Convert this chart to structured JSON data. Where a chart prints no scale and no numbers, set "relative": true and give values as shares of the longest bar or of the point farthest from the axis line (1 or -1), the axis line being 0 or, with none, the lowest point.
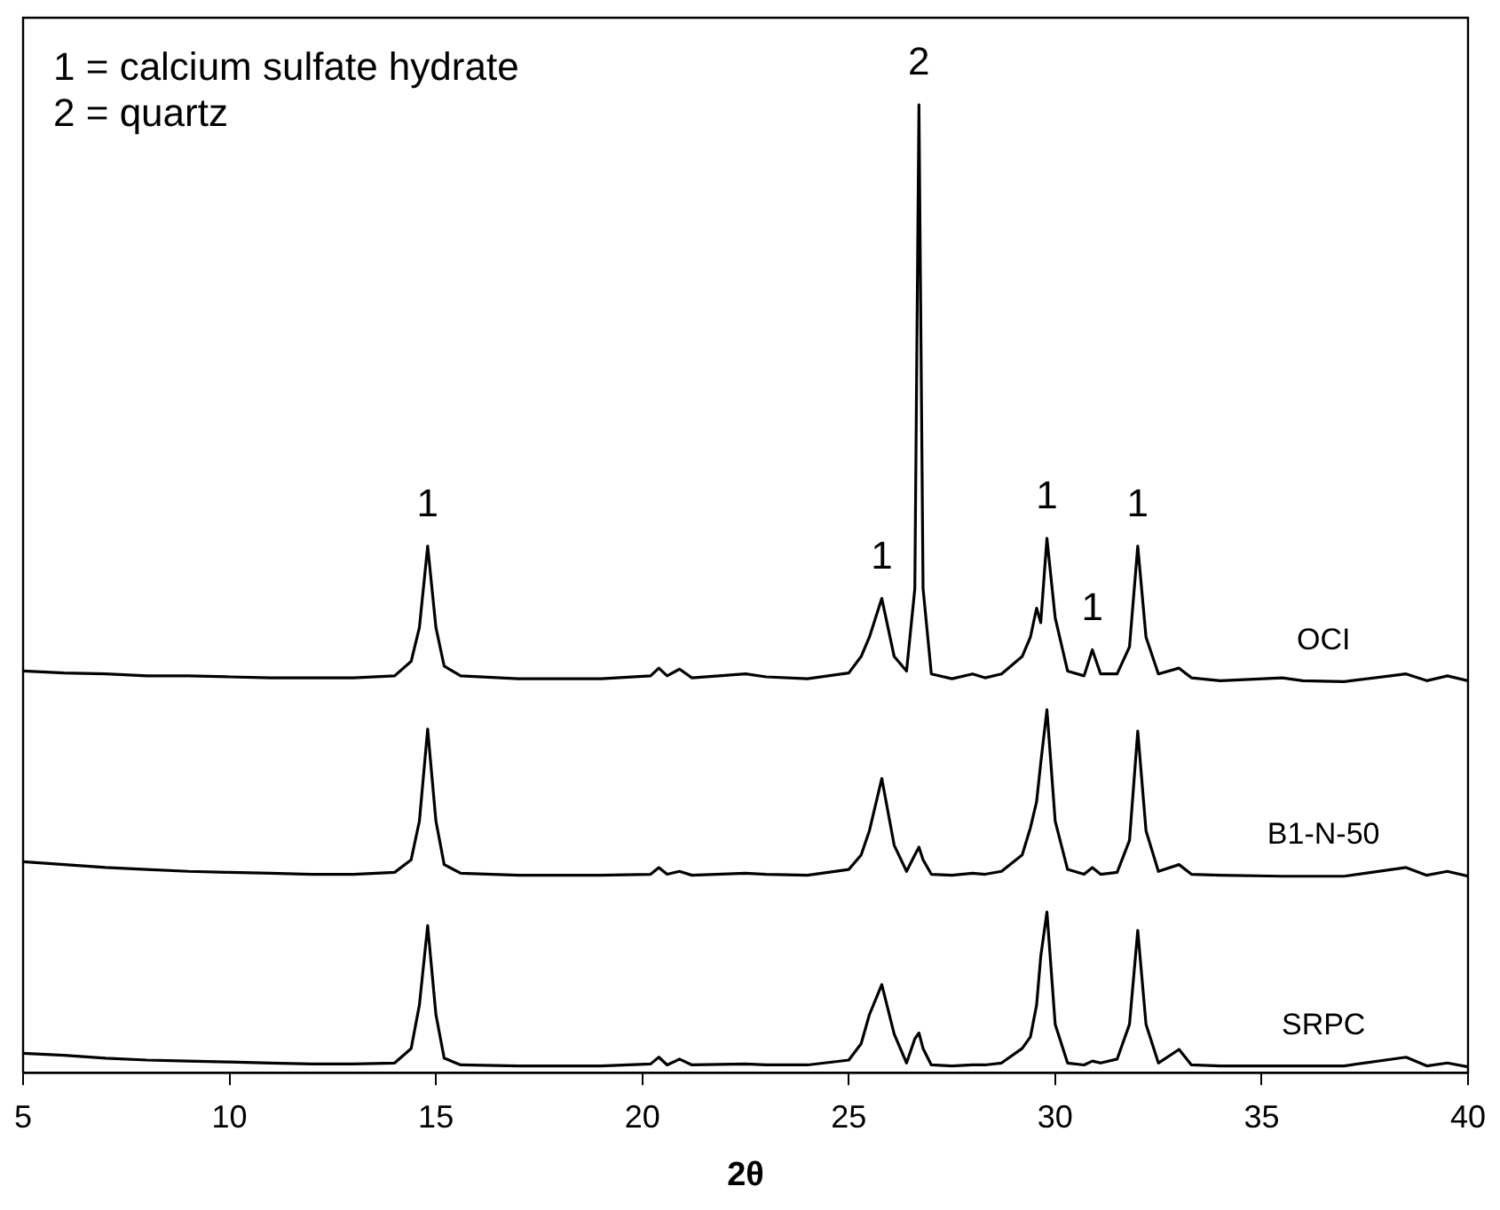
{
  "chart_data": {
    "type": "line",
    "xlabel": "2θ",
    "relative": true,
    "xlim": [
      5,
      40
    ],
    "xticks": [
      5,
      10,
      15,
      20,
      25,
      30,
      35,
      40
    ],
    "tick_labels": "x",
    "grid": false,
    "legend": false,
    "marker": "none",
    "line_style": "solid",
    "x": [
      5,
      6,
      7,
      8,
      9,
      10,
      11,
      12,
      13,
      14,
      14.4,
      14.6,
      14.8,
      15.0,
      15.2,
      15.6,
      17,
      19,
      20.2,
      20.4,
      20.6,
      20.9,
      21.2,
      22.5,
      23,
      24,
      25,
      25.3,
      25.5,
      25.8,
      26.1,
      26.4,
      26.6,
      26.7,
      26.8,
      27,
      27.5,
      28,
      28.3,
      28.7,
      29.2,
      29.4,
      29.55,
      29.65,
      29.8,
      30,
      30.3,
      30.7,
      30.9,
      31.1,
      31.5,
      31.8,
      32,
      32.2,
      32.5,
      33,
      33.3,
      34,
      35.5,
      36,
      37,
      38.5,
      39,
      39.5,
      40
    ],
    "series": [
      {
        "name": "OCI",
        "color": "#000000",
        "values": [
          0.415,
          0.413,
          0.412,
          0.41,
          0.41,
          0.409,
          0.408,
          0.408,
          0.408,
          0.41,
          0.425,
          0.46,
          0.544,
          0.46,
          0.42,
          0.41,
          0.407,
          0.407,
          0.41,
          0.418,
          0.41,
          0.417,
          0.408,
          0.412,
          0.409,
          0.407,
          0.413,
          0.43,
          0.45,
          0.49,
          0.43,
          0.415,
          0.5,
          1.0,
          0.5,
          0.412,
          0.407,
          0.412,
          0.408,
          0.412,
          0.43,
          0.45,
          0.48,
          0.465,
          0.552,
          0.47,
          0.415,
          0.41,
          0.437,
          0.412,
          0.412,
          0.44,
          0.544,
          0.45,
          0.412,
          0.418,
          0.408,
          0.405,
          0.408,
          0.405,
          0.404,
          0.412,
          0.405,
          0.41,
          0.405
        ]
      },
      {
        "name": "B1-N-50",
        "color": "#000000",
        "values": [
          0.218,
          0.215,
          0.212,
          0.21,
          0.208,
          0.207,
          0.206,
          0.205,
          0.205,
          0.207,
          0.22,
          0.26,
          0.355,
          0.26,
          0.215,
          0.206,
          0.204,
          0.204,
          0.205,
          0.212,
          0.205,
          0.208,
          0.204,
          0.206,
          0.205,
          0.204,
          0.21,
          0.225,
          0.25,
          0.304,
          0.235,
          0.208,
          0.225,
          0.233,
          0.22,
          0.205,
          0.204,
          0.206,
          0.205,
          0.208,
          0.225,
          0.253,
          0.28,
          0.32,
          0.375,
          0.26,
          0.21,
          0.205,
          0.212,
          0.205,
          0.207,
          0.24,
          0.353,
          0.25,
          0.208,
          0.215,
          0.205,
          0.204,
          0.203,
          0.203,
          0.203,
          0.212,
          0.204,
          0.208,
          0.203
        ]
      },
      {
        "name": "SRPC",
        "color": "#000000",
        "values": [
          0.02,
          0.018,
          0.015,
          0.013,
          0.012,
          0.011,
          0.01,
          0.009,
          0.009,
          0.01,
          0.025,
          0.07,
          0.152,
          0.06,
          0.015,
          0.008,
          0.007,
          0.007,
          0.009,
          0.016,
          0.008,
          0.014,
          0.008,
          0.009,
          0.008,
          0.008,
          0.013,
          0.03,
          0.06,
          0.091,
          0.04,
          0.01,
          0.035,
          0.041,
          0.025,
          0.008,
          0.007,
          0.008,
          0.008,
          0.01,
          0.025,
          0.037,
          0.07,
          0.12,
          0.166,
          0.05,
          0.01,
          0.008,
          0.012,
          0.01,
          0.014,
          0.05,
          0.147,
          0.05,
          0.01,
          0.024,
          0.008,
          0.007,
          0.007,
          0.007,
          0.007,
          0.016,
          0.007,
          0.01,
          0.006
        ]
      }
    ],
    "annotations": [
      "1 = calcium sulfate hydrate",
      "2 = quartz",
      {
        "text": "1",
        "x": 14.8,
        "y": 0.544
      },
      {
        "text": "1",
        "x": 25.8,
        "y": 0.49
      },
      {
        "text": "2",
        "x": 26.7,
        "y": 1.0
      },
      {
        "text": "1",
        "x": 29.8,
        "y": 0.552
      },
      {
        "text": "1",
        "x": 30.9,
        "y": 0.437
      },
      {
        "text": "1",
        "x": 32,
        "y": 0.544
      }
    ]
  }
}
